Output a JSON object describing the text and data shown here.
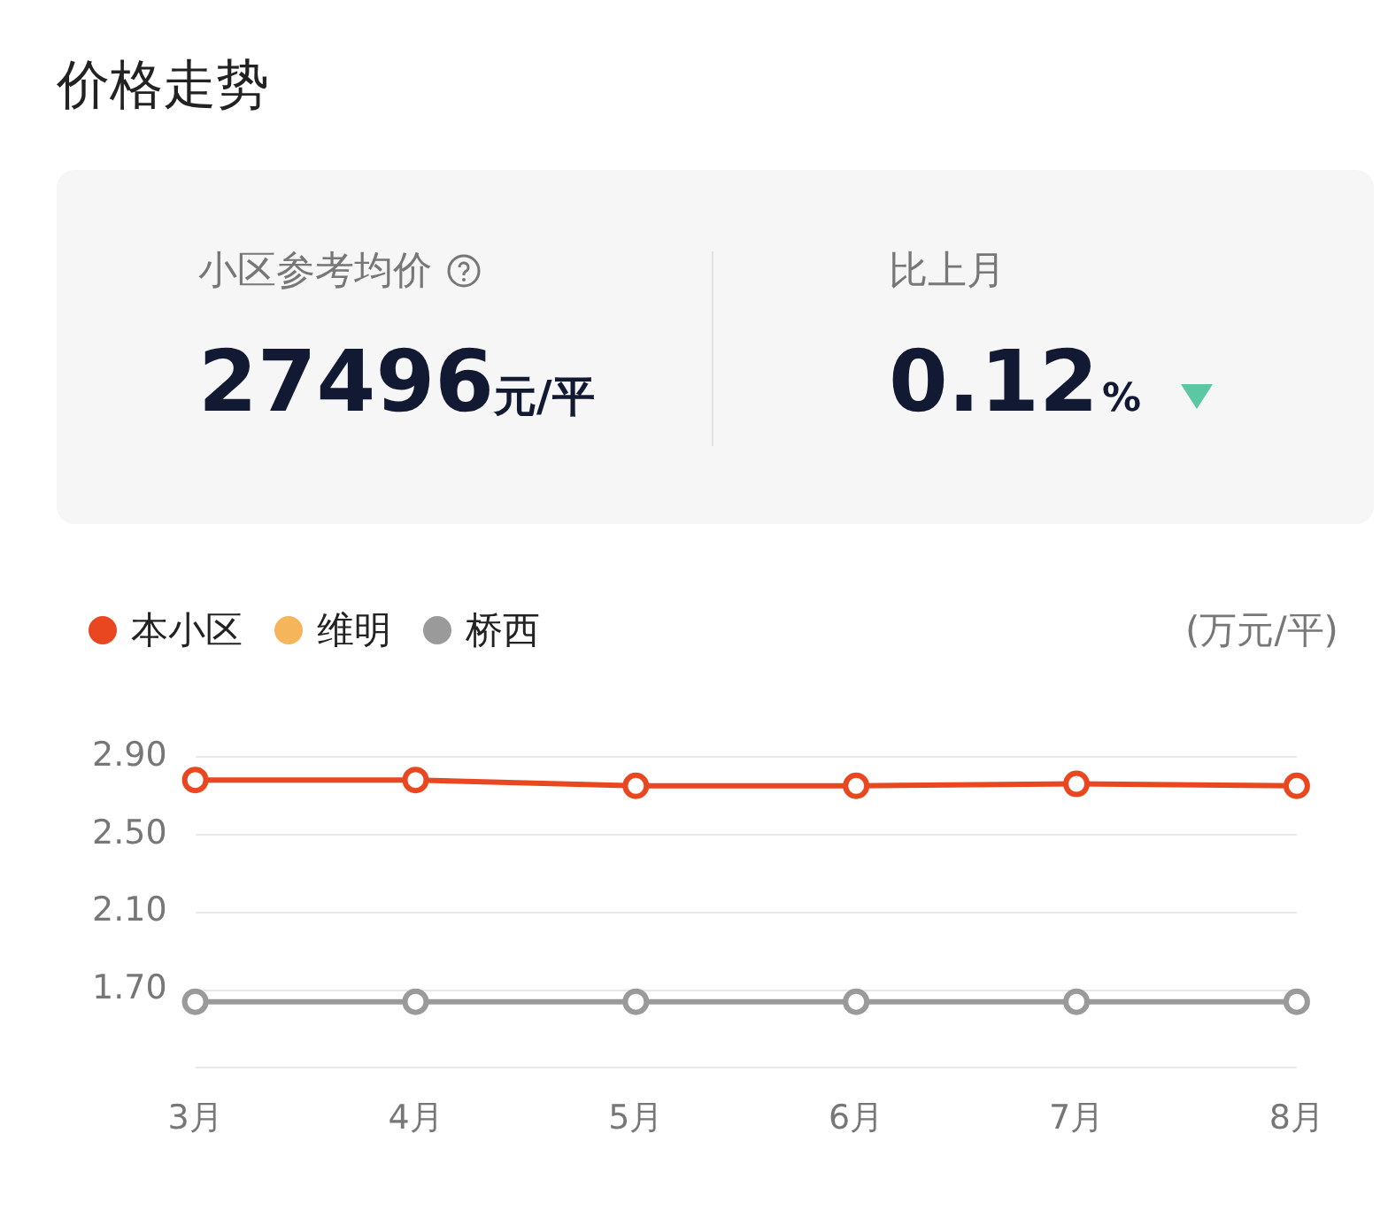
{
  "chart_data": {
    "type": "line",
    "title": "价格走势",
    "ylabel": "(万元/平)",
    "annotations": [
      "小区参考均价",
      "27496元/平",
      "比上月",
      "0.12%"
    ],
    "categories": [
      "3月",
      "4月",
      "5月",
      "6月",
      "7月",
      "8月"
    ],
    "series": [
      {
        "name": "本小区",
        "color": "#e8471f",
        "values": [
          2.78,
          2.78,
          2.75,
          2.75,
          2.76,
          2.75
        ]
      },
      {
        "name": "维明",
        "color": "#f5b55b",
        "values": [
          null,
          null,
          null,
          null,
          null,
          null
        ]
      },
      {
        "name": "桥西",
        "color": "#9a9a9a",
        "values": [
          1.64,
          1.64,
          1.64,
          1.64,
          1.64,
          1.64
        ]
      }
    ],
    "ylim": [
      1.3,
      2.9
    ],
    "yticks": [
      {
        "value": 1.3,
        "label": null
      },
      {
        "value": 1.7,
        "label": "1.70"
      },
      {
        "value": 2.1,
        "label": "2.10"
      },
      {
        "value": 2.5,
        "label": "2.50"
      },
      {
        "value": 2.9,
        "label": "2.90"
      }
    ],
    "grid": "y",
    "legend": "top left",
    "marker": "circle",
    "line_style": "solid"
  }
}
